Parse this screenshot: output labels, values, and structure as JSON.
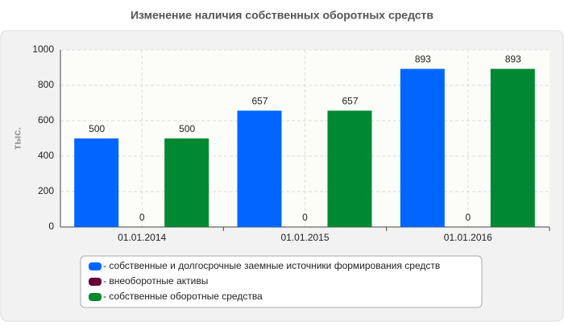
{
  "chart_data": {
    "type": "bar",
    "title": "Изменение наличия собственных оборотных средств",
    "y_label": "тыс.",
    "categories": [
      "01.01.2014",
      "01.01.2015",
      "01.01.2016"
    ],
    "series": [
      {
        "name": "- собственные и долгосрочные заемные источники формирования средств",
        "color": "#0066ff",
        "values": [
          500,
          657,
          893
        ]
      },
      {
        "name": "- внеоборотные активы",
        "color": "#660033",
        "values": [
          0,
          0,
          0
        ]
      },
      {
        "name": "- собственные оборотные средства",
        "color": "#008833",
        "values": [
          500,
          657,
          893
        ]
      }
    ],
    "ylim": [
      0,
      1000
    ],
    "yticks": [
      0,
      200,
      400,
      600,
      800,
      1000
    ],
    "grid": true,
    "legend": "bottom"
  }
}
